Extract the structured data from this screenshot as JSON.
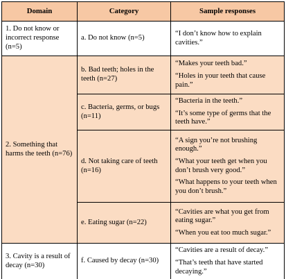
{
  "colors": {
    "header_bg": "#f7c8a4",
    "shade_bg": "#fbdcc3",
    "white_bg": "#ffffff",
    "border": "#000000"
  },
  "header": {
    "domain": "Domain",
    "category": "Category",
    "samples": "Sample responses"
  },
  "rows": [
    {
      "domain": "1.  Do not know or incorrect response (n=5)",
      "category": "a.  Do not know (n=5)",
      "samples": [
        "“I don’t know how to explain cavities.”"
      ]
    },
    {
      "domain": "2.  Something that harms the teeth (n=76)",
      "category": "b.  Bad teeth; holes in the teeth (n=27)",
      "samples": [
        "“Makes your teeth bad.”",
        "“Holes in your teeth that cause pain.”"
      ]
    },
    {
      "category": "c.  Bacteria, germs, or bugs (n=11)",
      "samples": [
        "“Bacteria in the teeth.”",
        "“It’s some type of germs that the teeth have.”"
      ]
    },
    {
      "category": "d.  Not taking care of teeth (n=16)",
      "samples": [
        "“A sign you’re not brushing enough.”",
        "“What your teeth get when you don’t brush very good.”",
        "“What happens to your teeth when you don’t brush.”"
      ]
    },
    {
      "category": "e.  Eating sugar (n=22)",
      "samples": [
        "“Cavities are what you get from eating sugar.”",
        "“When you eat too much sugar.”"
      ]
    },
    {
      "domain": "3.  Cavity is a result of decay (n=30)",
      "category": "f.  Caused by decay (n=30)",
      "samples": [
        "“Cavities are a result of decay.”",
        "“That’s teeth that have started decaying.”"
      ]
    }
  ]
}
